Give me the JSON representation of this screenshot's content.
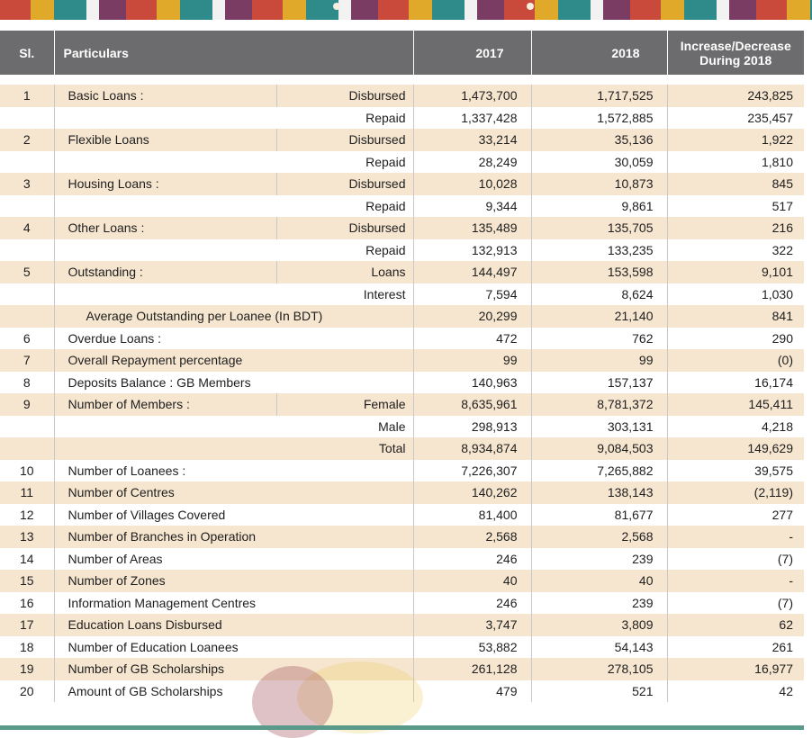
{
  "header": {
    "sl": "Sl.",
    "particulars": "Particulars",
    "y2017": "2017",
    "y2018": "2018",
    "change_line1": "Increase/Decrease",
    "change_line2": "During 2018"
  },
  "rows": [
    {
      "sl": "1",
      "label": "Basic Loans :",
      "sub": "Disbursed",
      "v2017": "1,473,700",
      "v2018": "1,717,525",
      "change": "243,825"
    },
    {
      "sl": "",
      "label": "",
      "sub": "Repaid",
      "v2017": "1,337,428",
      "v2018": "1,572,885",
      "change": "235,457"
    },
    {
      "sl": "2",
      "label": "Flexible Loans",
      "sub": "Disbursed",
      "v2017": "33,214",
      "v2018": "35,136",
      "change": "1,922"
    },
    {
      "sl": "",
      "label": "",
      "sub": "Repaid",
      "v2017": "28,249",
      "v2018": "30,059",
      "change": "1,810"
    },
    {
      "sl": "3",
      "label": "Housing Loans :",
      "sub": "Disbursed",
      "v2017": "10,028",
      "v2018": "10,873",
      "change": "845"
    },
    {
      "sl": "",
      "label": "",
      "sub": "Repaid",
      "v2017": "9,344",
      "v2018": "9,861",
      "change": "517"
    },
    {
      "sl": "4",
      "label": "Other Loans :",
      "sub": "Disbursed",
      "v2017": "135,489",
      "v2018": "135,705",
      "change": "216"
    },
    {
      "sl": "",
      "label": "",
      "sub": "Repaid",
      "v2017": "132,913",
      "v2018": "133,235",
      "change": "322"
    },
    {
      "sl": "5",
      "label": "Outstanding :",
      "sub": "Loans",
      "v2017": "144,497",
      "v2018": "153,598",
      "change": "9,101"
    },
    {
      "sl": "",
      "label": "",
      "sub": "Interest",
      "v2017": "7,594",
      "v2018": "8,624",
      "change": "1,030"
    },
    {
      "sl": "",
      "label": "Average Outstanding per Loanee (In BDT)",
      "sub": "",
      "v2017": "20,299",
      "v2018": "21,140",
      "change": "841"
    },
    {
      "sl": "6",
      "label": "Overdue Loans :",
      "sub": "",
      "v2017": "472",
      "v2018": "762",
      "change": "290"
    },
    {
      "sl": "7",
      "label": "Overall Repayment percentage",
      "sub": "",
      "v2017": "99",
      "v2018": "99",
      "change": "(0)"
    },
    {
      "sl": "8",
      "label": "Deposits Balance : GB Members",
      "sub": "",
      "v2017": "140,963",
      "v2018": "157,137",
      "change": "16,174"
    },
    {
      "sl": "9",
      "label": "Number of Members :",
      "sub": "Female",
      "v2017": "8,635,961",
      "v2018": "8,781,372",
      "change": "145,411"
    },
    {
      "sl": "",
      "label": "",
      "sub": "Male",
      "v2017": "298,913",
      "v2018": "303,131",
      "change": "4,218"
    },
    {
      "sl": "",
      "label": "",
      "sub": "Total",
      "v2017": "8,934,874",
      "v2018": "9,084,503",
      "change": "149,629"
    },
    {
      "sl": "10",
      "label": "Number of Loanees :",
      "sub": "",
      "v2017": "7,226,307",
      "v2018": "7,265,882",
      "change": "39,575"
    },
    {
      "sl": "11",
      "label": "Number of Centres",
      "sub": "",
      "v2017": "140,262",
      "v2018": "138,143",
      "change": "(2,119)"
    },
    {
      "sl": "12",
      "label": "Number of Villages Covered",
      "sub": "",
      "v2017": "81,400",
      "v2018": "81,677",
      "change": "277"
    },
    {
      "sl": "13",
      "label": "Number of Branches in Operation",
      "sub": "",
      "v2017": "2,568",
      "v2018": "2,568",
      "change": "-"
    },
    {
      "sl": "14",
      "label": "Number of Areas",
      "sub": "",
      "v2017": "246",
      "v2018": "239",
      "change": "(7)"
    },
    {
      "sl": "15",
      "label": "Number of Zones",
      "sub": "",
      "v2017": "40",
      "v2018": "40",
      "change": "-"
    },
    {
      "sl": "16",
      "label": "Information Management Centres",
      "sub": "",
      "v2017": "246",
      "v2018": "239",
      "change": "(7)"
    },
    {
      "sl": "17",
      "label": "Education Loans Disbursed",
      "sub": "",
      "v2017": "3,747",
      "v2018": "3,809",
      "change": "62"
    },
    {
      "sl": "18",
      "label": "Number of Education Loanees",
      "sub": "",
      "v2017": "53,882",
      "v2018": "54,143",
      "change": "261"
    },
    {
      "sl": "19",
      "label": "Number of GB Scholarships",
      "sub": "",
      "v2017": "261,128",
      "v2018": "278,105",
      "change": "16,977"
    },
    {
      "sl": "20",
      "label": "Amount of GB Scholarships",
      "sub": "",
      "v2017": "479",
      "v2018": "521",
      "change": "42"
    }
  ]
}
